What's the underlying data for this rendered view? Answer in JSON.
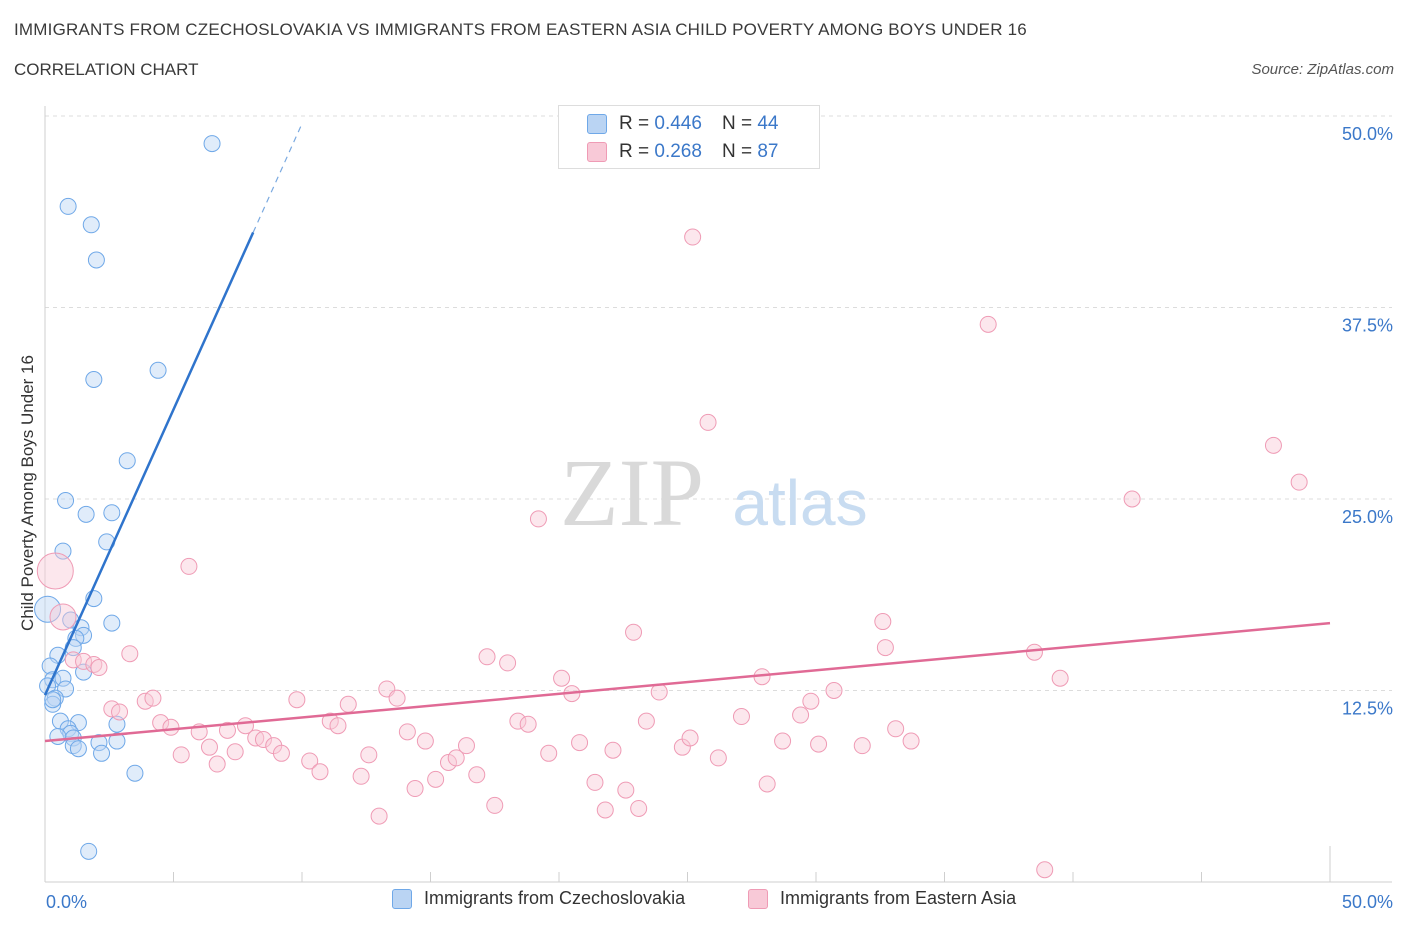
{
  "title": "IMMIGRANTS FROM CZECHOSLOVAKIA VS IMMIGRANTS FROM EASTERN ASIA CHILD POVERTY AMONG BOYS UNDER 16",
  "subtitle": "CORRELATION CHART",
  "source": "Source: ZipAtlas.com",
  "watermark": {
    "zip": "ZIP",
    "atlas": "atlas"
  },
  "legend": {
    "r_label": "R =",
    "n_label": "N =",
    "rows": [
      {
        "r": "0.446",
        "n": "44",
        "color": "#6fa8e8"
      },
      {
        "r": "0.268",
        "n": "87",
        "color": "#ef9bb5"
      }
    ]
  },
  "bottom_legend": [
    {
      "label": "Immigrants from Czechoslovakia",
      "color": "#6fa8e8"
    },
    {
      "label": "Immigrants from Eastern Asia",
      "color": "#ef9bb5"
    }
  ],
  "chart_data": {
    "type": "scatter",
    "title": "IMMIGRANTS FROM CZECHOSLOVAKIA VS IMMIGRANTS FROM EASTERN ASIA CHILD POVERTY AMONG BOYS UNDER 16",
    "xlabel": "",
    "ylabel": "Child Poverty Among Boys Under 16",
    "xlim": [
      0,
      50
    ],
    "ylim": [
      0,
      50
    ],
    "x_tick_labels": [
      "0.0%",
      "50.0%"
    ],
    "y_tick_labels": [
      "12.5%",
      "25.0%",
      "37.5%",
      "50.0%"
    ],
    "y_ticks": [
      12.5,
      25,
      37.5,
      50
    ],
    "grid": true,
    "series": [
      {
        "name": "Immigrants from Czechoslovakia",
        "color": "#6fa8e8",
        "points": [
          [
            6.5,
            48.2
          ],
          [
            0.9,
            44.1
          ],
          [
            1.8,
            42.9
          ],
          [
            2.0,
            40.6
          ],
          [
            4.4,
            33.4
          ],
          [
            1.9,
            32.8
          ],
          [
            3.2,
            27.5
          ],
          [
            0.8,
            24.9
          ],
          [
            1.6,
            24.0
          ],
          [
            2.6,
            24.1
          ],
          [
            2.4,
            22.2
          ],
          [
            0.7,
            21.6
          ],
          [
            1.9,
            18.5
          ],
          [
            0.1,
            17.8
          ],
          [
            1.0,
            17.1
          ],
          [
            2.6,
            16.9
          ],
          [
            1.4,
            16.6
          ],
          [
            1.5,
            16.1
          ],
          [
            1.2,
            15.9
          ],
          [
            1.1,
            15.3
          ],
          [
            0.5,
            14.8
          ],
          [
            0.2,
            14.1
          ],
          [
            1.5,
            13.7
          ],
          [
            0.3,
            13.2
          ],
          [
            0.7,
            13.3
          ],
          [
            0.8,
            12.6
          ],
          [
            0.1,
            12.8
          ],
          [
            0.4,
            12.0
          ],
          [
            0.3,
            11.6
          ],
          [
            0.6,
            10.5
          ],
          [
            1.3,
            10.4
          ],
          [
            2.8,
            10.3
          ],
          [
            0.9,
            10.0
          ],
          [
            1.0,
            9.7
          ],
          [
            1.1,
            9.4
          ],
          [
            0.5,
            9.5
          ],
          [
            2.8,
            9.2
          ],
          [
            2.1,
            9.1
          ],
          [
            1.1,
            8.9
          ],
          [
            2.2,
            8.4
          ],
          [
            1.3,
            8.7
          ],
          [
            3.5,
            7.1
          ],
          [
            1.7,
            2.0
          ],
          [
            0.3,
            11.9
          ]
        ],
        "trend": {
          "x0": 0.0,
          "y0": 12.2,
          "x1": 8.1,
          "y1": 42.4,
          "dash_to": [
            10.0,
            49.5
          ]
        }
      },
      {
        "name": "Immigrants from Eastern Asia",
        "color": "#ef9bb5",
        "points": [
          [
            0.4,
            20.3
          ],
          [
            0.7,
            17.3
          ],
          [
            1.1,
            14.5
          ],
          [
            1.5,
            14.4
          ],
          [
            1.9,
            14.2
          ],
          [
            2.1,
            14.0
          ],
          [
            2.6,
            11.3
          ],
          [
            2.9,
            11.1
          ],
          [
            3.3,
            14.9
          ],
          [
            3.9,
            11.8
          ],
          [
            4.2,
            12.0
          ],
          [
            4.5,
            10.4
          ],
          [
            4.9,
            10.1
          ],
          [
            5.3,
            8.3
          ],
          [
            5.6,
            20.6
          ],
          [
            6.0,
            9.8
          ],
          [
            6.4,
            8.8
          ],
          [
            6.7,
            7.7
          ],
          [
            7.1,
            9.9
          ],
          [
            7.4,
            8.5
          ],
          [
            7.8,
            10.2
          ],
          [
            8.2,
            9.4
          ],
          [
            8.5,
            9.3
          ],
          [
            8.9,
            8.9
          ],
          [
            9.2,
            8.4
          ],
          [
            9.8,
            11.9
          ],
          [
            10.3,
            7.9
          ],
          [
            10.7,
            7.2
          ],
          [
            11.1,
            10.5
          ],
          [
            11.4,
            10.2
          ],
          [
            11.8,
            11.6
          ],
          [
            12.3,
            6.9
          ],
          [
            12.6,
            8.3
          ],
          [
            13.0,
            4.3
          ],
          [
            13.3,
            12.6
          ],
          [
            13.7,
            12.0
          ],
          [
            14.1,
            9.8
          ],
          [
            14.4,
            6.1
          ],
          [
            14.8,
            9.2
          ],
          [
            15.2,
            6.7
          ],
          [
            15.7,
            7.8
          ],
          [
            16.0,
            8.1
          ],
          [
            16.4,
            8.9
          ],
          [
            16.8,
            7.0
          ],
          [
            17.2,
            14.7
          ],
          [
            17.5,
            5.0
          ],
          [
            18.0,
            14.3
          ],
          [
            18.4,
            10.5
          ],
          [
            18.8,
            10.3
          ],
          [
            19.2,
            23.7
          ],
          [
            19.6,
            8.4
          ],
          [
            20.1,
            13.3
          ],
          [
            20.5,
            12.3
          ],
          [
            20.8,
            9.1
          ],
          [
            21.4,
            6.5
          ],
          [
            21.8,
            4.7
          ],
          [
            22.1,
            8.6
          ],
          [
            22.6,
            6.0
          ],
          [
            22.9,
            16.3
          ],
          [
            23.1,
            4.8
          ],
          [
            23.4,
            10.5
          ],
          [
            23.9,
            12.4
          ],
          [
            24.8,
            8.8
          ],
          [
            25.1,
            9.4
          ],
          [
            25.2,
            42.1
          ],
          [
            25.8,
            30.0
          ],
          [
            26.2,
            8.1
          ],
          [
            27.1,
            10.8
          ],
          [
            27.9,
            13.4
          ],
          [
            28.1,
            6.4
          ],
          [
            28.7,
            9.2
          ],
          [
            29.4,
            10.9
          ],
          [
            29.8,
            11.8
          ],
          [
            30.1,
            9.0
          ],
          [
            30.7,
            12.5
          ],
          [
            31.8,
            8.9
          ],
          [
            32.6,
            17.0
          ],
          [
            32.7,
            15.3
          ],
          [
            33.1,
            10.0
          ],
          [
            33.7,
            9.2
          ],
          [
            36.7,
            36.4
          ],
          [
            38.5,
            15.0
          ],
          [
            38.9,
            0.8
          ],
          [
            39.5,
            13.3
          ],
          [
            42.3,
            25.0
          ],
          [
            47.8,
            28.5
          ],
          [
            48.8,
            26.1
          ]
        ],
        "trend": {
          "x0": 0.0,
          "y0": 9.2,
          "x1": 50.0,
          "y1": 16.9
        }
      }
    ]
  }
}
